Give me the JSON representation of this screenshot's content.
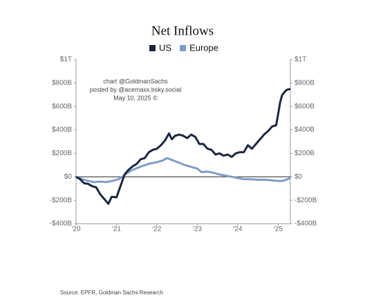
{
  "chart_data": {
    "type": "line",
    "title": "Net Inflows",
    "annotation": [
      "chart @GoldmanSachs",
      "posted by @acemaxx.bsky.social",
      "May 10, 2025 ©"
    ],
    "source": "Source: EPFR, Goldman Sachs Research",
    "xlim": [
      2020,
      2025.3
    ],
    "xticks": [
      {
        "value": 2020,
        "label": "'20"
      },
      {
        "value": 2021,
        "label": "'21"
      },
      {
        "value": 2022,
        "label": "'22"
      },
      {
        "value": 2023,
        "label": "'23"
      },
      {
        "value": 2024,
        "label": "'24"
      },
      {
        "value": 2025,
        "label": "'25"
      }
    ],
    "ylim": [
      -400,
      1000
    ],
    "yticks": [
      {
        "value": -400,
        "label": "-$400B"
      },
      {
        "value": -200,
        "label": "-$200B"
      },
      {
        "value": 0,
        "label": "$0"
      },
      {
        "value": 200,
        "label": "$200B"
      },
      {
        "value": 400,
        "label": "$400B"
      },
      {
        "value": 600,
        "label": "$600B"
      },
      {
        "value": 800,
        "label": "$800B"
      },
      {
        "value": 1000,
        "label": "$1T"
      }
    ],
    "y2lim": [
      -400,
      1000
    ],
    "y2ticks": [
      {
        "value": -400,
        "label": "-$400B"
      },
      {
        "value": -200,
        "label": "-$200B"
      },
      {
        "value": 0,
        "label": "$0"
      },
      {
        "value": 200,
        "label": "$200B"
      },
      {
        "value": 400,
        "label": "$400B"
      },
      {
        "value": 600,
        "label": "$600B"
      },
      {
        "value": 800,
        "label": "$800B"
      },
      {
        "value": 1000,
        "label": "$1T"
      }
    ],
    "series": [
      {
        "name": "US",
        "color": "#1b2540",
        "x": [
          2020.0,
          2020.1,
          2020.2,
          2020.3,
          2020.4,
          2020.5,
          2020.6,
          2020.7,
          2020.8,
          2020.88,
          2021.0,
          2021.1,
          2021.2,
          2021.3,
          2021.4,
          2021.5,
          2021.6,
          2021.7,
          2021.8,
          2021.9,
          2022.0,
          2022.1,
          2022.2,
          2022.3,
          2022.37,
          2022.45,
          2022.55,
          2022.65,
          2022.75,
          2022.85,
          2022.95,
          2023.05,
          2023.15,
          2023.25,
          2023.35,
          2023.45,
          2023.55,
          2023.65,
          2023.75,
          2023.85,
          2023.95,
          2024.05,
          2024.15,
          2024.25,
          2024.35,
          2024.45,
          2024.55,
          2024.65,
          2024.75,
          2024.85,
          2024.95,
          2025.0,
          2025.05,
          2025.1,
          2025.2,
          2025.3
        ],
        "values": [
          0,
          -20,
          -55,
          -60,
          -80,
          -90,
          -150,
          -190,
          -230,
          -170,
          -175,
          -80,
          20,
          60,
          90,
          110,
          150,
          160,
          210,
          230,
          240,
          270,
          310,
          370,
          320,
          350,
          360,
          350,
          330,
          360,
          340,
          280,
          280,
          240,
          230,
          190,
          200,
          180,
          190,
          170,
          200,
          210,
          210,
          270,
          240,
          280,
          320,
          360,
          390,
          430,
          440,
          540,
          640,
          700,
          740,
          750
        ]
      },
      {
        "name": "Europe",
        "color": "#7f9cc8",
        "x": [
          2020.0,
          2020.15,
          2020.3,
          2020.45,
          2020.6,
          2020.75,
          2020.9,
          2021.05,
          2021.15,
          2021.25,
          2021.4,
          2021.55,
          2021.7,
          2021.85,
          2022.0,
          2022.15,
          2022.25,
          2022.4,
          2022.55,
          2022.7,
          2022.85,
          2023.0,
          2023.1,
          2023.25,
          2023.4,
          2023.55,
          2023.7,
          2023.85,
          2024.0,
          2024.15,
          2024.3,
          2024.5,
          2024.7,
          2024.85,
          2025.0,
          2025.1,
          2025.2,
          2025.3
        ],
        "values": [
          0,
          -20,
          -35,
          -45,
          -40,
          -45,
          -35,
          -20,
          0,
          30,
          60,
          80,
          100,
          115,
          125,
          140,
          160,
          140,
          120,
          100,
          85,
          70,
          40,
          45,
          35,
          20,
          10,
          0,
          -10,
          -20,
          -20,
          -25,
          -25,
          -30,
          -35,
          -35,
          -25,
          -10
        ]
      }
    ]
  }
}
